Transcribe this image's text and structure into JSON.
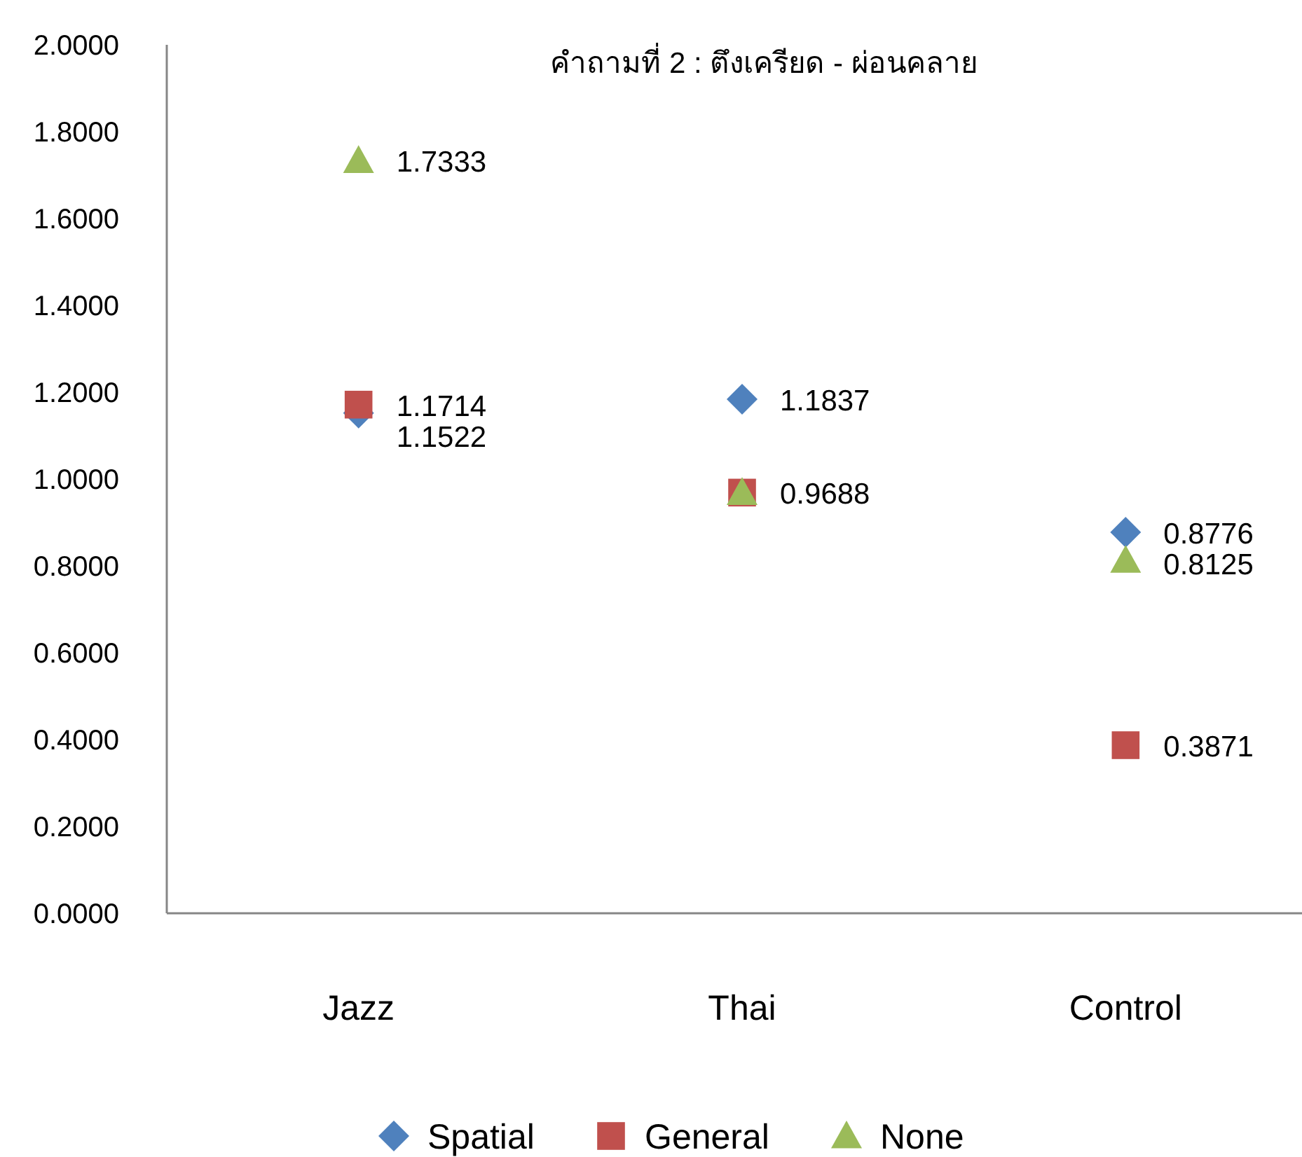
{
  "chart_data": {
    "type": "scatter",
    "title": "คำถามที่ 2  : ตึงเครียด - ผ่อนคลาย",
    "categories": [
      "Jazz",
      "Thai",
      "Control"
    ],
    "ylim": [
      0,
      2
    ],
    "yticks": [
      {
        "value": 0,
        "label": "0.0000"
      },
      {
        "value": 0.2,
        "label": "0.2000"
      },
      {
        "value": 0.4,
        "label": "0.4000"
      },
      {
        "value": 0.6,
        "label": "0.6000"
      },
      {
        "value": 0.8,
        "label": "0.8000"
      },
      {
        "value": 1,
        "label": "1.0000"
      },
      {
        "value": 1.2,
        "label": "1.2000"
      },
      {
        "value": 1.4,
        "label": "1.4000"
      },
      {
        "value": 1.6,
        "label": "1.6000"
      },
      {
        "value": 1.8,
        "label": "1.8000"
      },
      {
        "value": 2,
        "label": "2.0000"
      }
    ],
    "grid": false,
    "legend": "bottom",
    "series": [
      {
        "name": "Spatial",
        "color": "#4f81bd",
        "marker": "diamond",
        "values": [
          1.1522,
          1.1837,
          0.8776
        ],
        "value_labels": [
          "1.1522",
          "1.1837",
          "0.8776"
        ]
      },
      {
        "name": "General",
        "color": "#c0504d",
        "marker": "square",
        "values": [
          1.1714,
          0.9688,
          0.3871
        ],
        "value_labels": [
          "1.1714",
          "0.9688",
          "0.3871"
        ]
      },
      {
        "name": "None",
        "color": "#9bbb59",
        "marker": "triangle",
        "values": [
          1.7333,
          0.9688,
          0.8125
        ],
        "value_labels": [
          "1.7333",
          null,
          "0.8125"
        ]
      }
    ]
  }
}
